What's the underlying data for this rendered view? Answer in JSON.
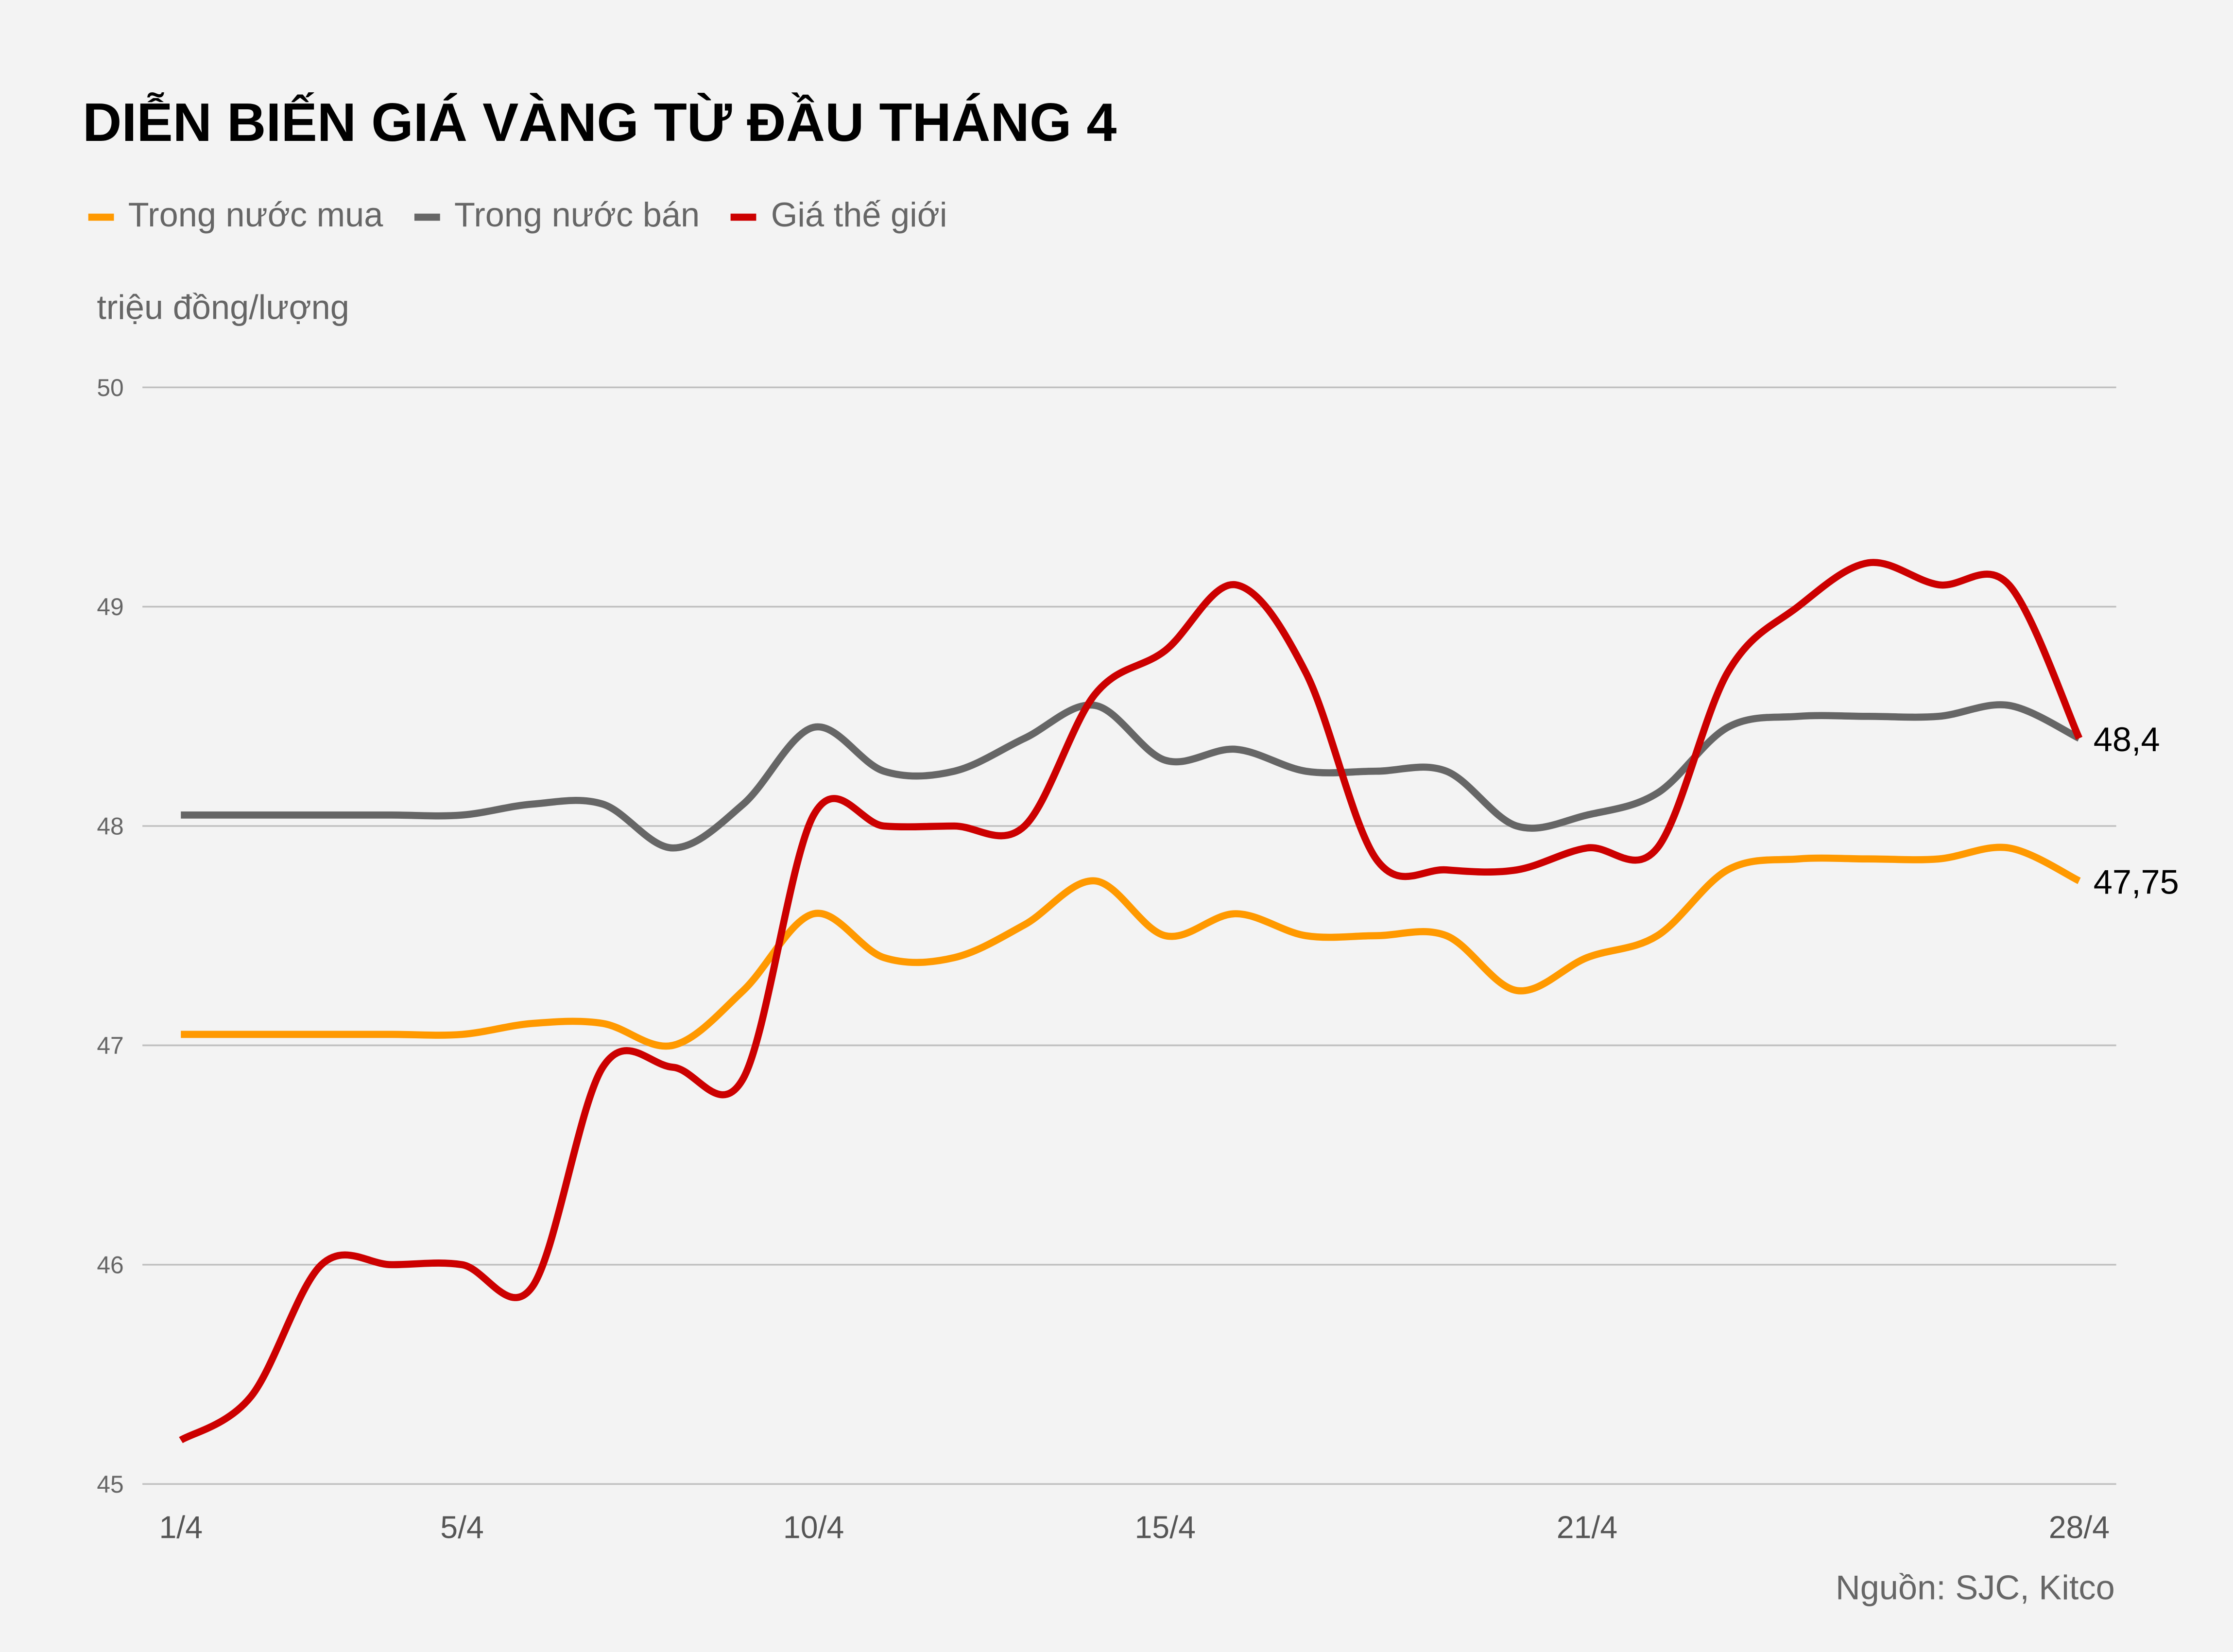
{
  "chart_data": {
    "type": "line",
    "title": "DIỄN BIẾN GIÁ VÀNG TỪ ĐẦU THÁNG 4",
    "ylabel": "triệu đồng/lượng",
    "source": "Nguồn: SJC, Kitco",
    "ylim": [
      45,
      50
    ],
    "yticks": [
      "45",
      "46",
      "47",
      "48",
      "49",
      "50"
    ],
    "x": [
      "1/4",
      "2/4",
      "3/4",
      "4/4",
      "5/4",
      "6/4",
      "7/4",
      "8/4",
      "9/4",
      "10/4",
      "11/4",
      "12/4",
      "13/4",
      "14/4",
      "15/4",
      "16/4",
      "17/4",
      "18/4",
      "19/4",
      "20/4",
      "21/4",
      "22/4",
      "23/4",
      "24/4",
      "25/4",
      "26/4",
      "27/4",
      "28/4"
    ],
    "xticks": [
      "1/4",
      "5/4",
      "10/4",
      "15/4",
      "21/4",
      "28/4"
    ],
    "grid": true,
    "legend": "top-left",
    "series": [
      {
        "name": "Trong nước mua",
        "color": "#ff9900",
        "end_label": "47,75",
        "values": [
          47.05,
          47.05,
          47.05,
          47.05,
          47.05,
          47.1,
          47.1,
          47.0,
          47.25,
          47.6,
          47.4,
          47.4,
          47.55,
          47.75,
          47.5,
          47.6,
          47.5,
          47.5,
          47.5,
          47.25,
          47.4,
          47.5,
          47.8,
          47.85,
          47.85,
          47.85,
          47.9,
          47.75
        ]
      },
      {
        "name": "Trong nước bán",
        "color": "#666666",
        "end_label": "48,4",
        "values": [
          48.05,
          48.05,
          48.05,
          48.05,
          48.05,
          48.1,
          48.1,
          47.9,
          48.1,
          48.45,
          48.25,
          48.25,
          48.4,
          48.55,
          48.3,
          48.35,
          48.25,
          48.25,
          48.25,
          48.0,
          48.05,
          48.15,
          48.45,
          48.5,
          48.5,
          48.5,
          48.55,
          48.4
        ]
      },
      {
        "name": "Giá thế giới",
        "color": "#cc0000",
        "values": [
          45.2,
          45.4,
          46.0,
          46.0,
          46.0,
          45.9,
          46.9,
          46.9,
          46.85,
          48.05,
          48.0,
          48.0,
          48.0,
          48.6,
          48.8,
          49.1,
          48.7,
          47.85,
          47.8,
          47.8,
          47.9,
          47.9,
          48.7,
          49.0,
          49.2,
          49.1,
          49.1,
          48.4
        ]
      }
    ]
  }
}
